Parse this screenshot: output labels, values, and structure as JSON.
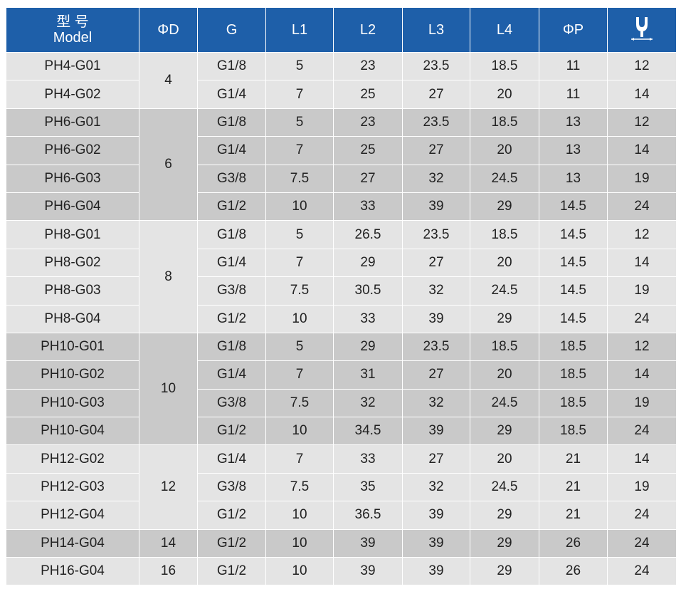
{
  "header": {
    "model_cn": "型 号",
    "model_en": "Model",
    "cols": [
      "ΦD",
      "G",
      "L1",
      "L2",
      "L3",
      "L4",
      "ΦP"
    ]
  },
  "groups": [
    {
      "d": "4",
      "rows": [
        [
          "PH4-G01",
          "G1/8",
          "5",
          "23",
          "23.5",
          "18.5",
          "11",
          "12"
        ],
        [
          "PH4-G02",
          "G1/4",
          "7",
          "25",
          "27",
          "20",
          "11",
          "14"
        ]
      ]
    },
    {
      "d": "6",
      "rows": [
        [
          "PH6-G01",
          "G1/8",
          "5",
          "23",
          "23.5",
          "18.5",
          "13",
          "12"
        ],
        [
          "PH6-G02",
          "G1/4",
          "7",
          "25",
          "27",
          "20",
          "13",
          "14"
        ],
        [
          "PH6-G03",
          "G3/8",
          "7.5",
          "27",
          "32",
          "24.5",
          "13",
          "19"
        ],
        [
          "PH6-G04",
          "G1/2",
          "10",
          "33",
          "39",
          "29",
          "14.5",
          "24"
        ]
      ]
    },
    {
      "d": "8",
      "rows": [
        [
          "PH8-G01",
          "G1/8",
          "5",
          "26.5",
          "23.5",
          "18.5",
          "14.5",
          "12"
        ],
        [
          "PH8-G02",
          "G1/4",
          "7",
          "29",
          "27",
          "20",
          "14.5",
          "14"
        ],
        [
          "PH8-G03",
          "G3/8",
          "7.5",
          "30.5",
          "32",
          "24.5",
          "14.5",
          "19"
        ],
        [
          "PH8-G04",
          "G1/2",
          "10",
          "33",
          "39",
          "29",
          "14.5",
          "24"
        ]
      ]
    },
    {
      "d": "10",
      "rows": [
        [
          "PH10-G01",
          "G1/8",
          "5",
          "29",
          "23.5",
          "18.5",
          "18.5",
          "12"
        ],
        [
          "PH10-G02",
          "G1/4",
          "7",
          "31",
          "27",
          "20",
          "18.5",
          "14"
        ],
        [
          "PH10-G03",
          "G3/8",
          "7.5",
          "32",
          "32",
          "24.5",
          "18.5",
          "19"
        ],
        [
          "PH10-G04",
          "G1/2",
          "10",
          "34.5",
          "39",
          "29",
          "18.5",
          "24"
        ]
      ]
    },
    {
      "d": "12",
      "rows": [
        [
          "PH12-G02",
          "G1/4",
          "7",
          "33",
          "27",
          "20",
          "21",
          "14"
        ],
        [
          "PH12-G03",
          "G3/8",
          "7.5",
          "35",
          "32",
          "24.5",
          "21",
          "19"
        ],
        [
          "PH12-G04",
          "G1/2",
          "10",
          "36.5",
          "39",
          "29",
          "21",
          "24"
        ]
      ]
    },
    {
      "d": "14",
      "rows": [
        [
          "PH14-G04",
          "G1/2",
          "10",
          "39",
          "39",
          "29",
          "26",
          "24"
        ]
      ]
    },
    {
      "d": "16",
      "rows": [
        [
          "PH16-G04",
          "G1/2",
          "10",
          "39",
          "39",
          "29",
          "26",
          "24"
        ]
      ]
    }
  ]
}
